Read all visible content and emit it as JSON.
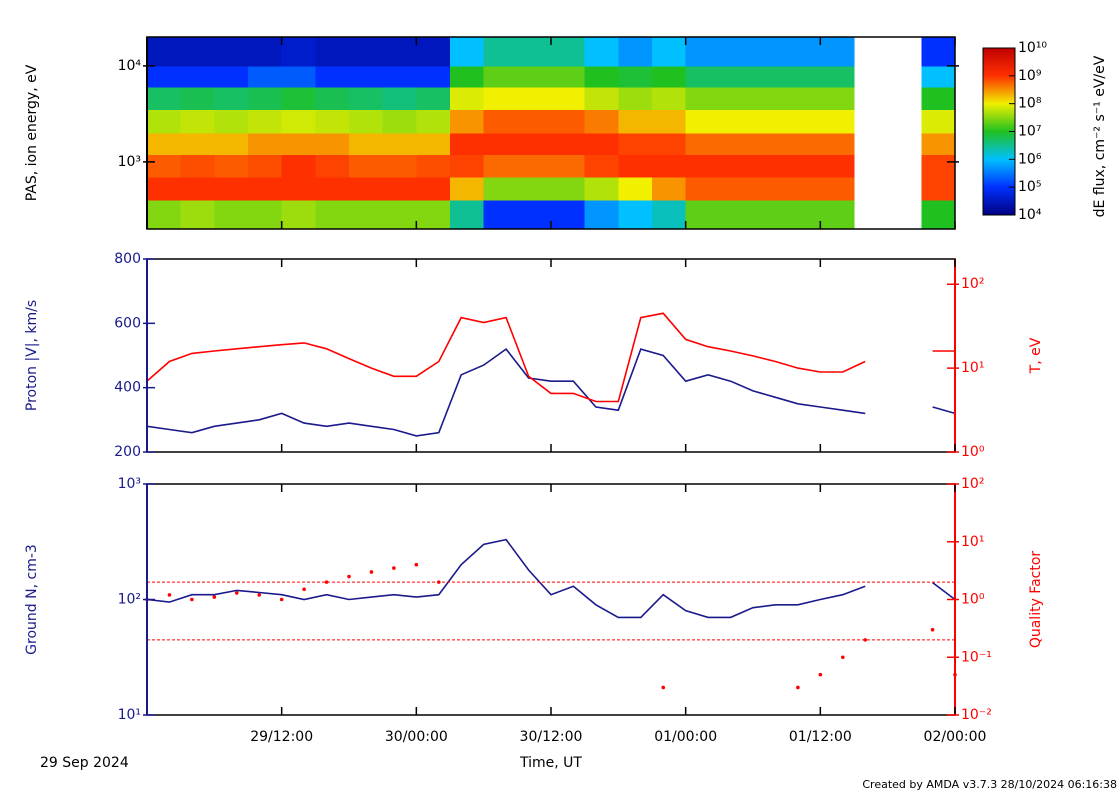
{
  "chart_data": [
    {
      "type": "heatmap",
      "ylabel": "PAS, ion energy, eV",
      "x_bins": [
        0,
        3,
        6,
        9,
        12,
        15,
        18,
        21,
        24,
        27,
        30,
        33,
        36,
        39,
        42,
        45,
        48,
        51,
        54,
        57,
        60,
        63,
        66,
        69,
        72
      ],
      "y_bins": [
        200,
        400,
        700,
        1200,
        2000,
        3500,
        6000,
        10000,
        20000
      ],
      "z": [
        [
          30000000.0,
          1000000000.0,
          600000000.0,
          200000000.0,
          50000000.0,
          5000000.0,
          100000.0,
          30000.0
        ],
        [
          40000000.0,
          1000000000.0,
          700000000.0,
          200000000.0,
          60000000.0,
          6000000.0,
          100000.0,
          30000.0
        ],
        [
          30000000.0,
          1000000000.0,
          600000000.0,
          200000000.0,
          50000000.0,
          5000000.0,
          100000.0,
          30000.0
        ],
        [
          30000000.0,
          1000000000.0,
          700000000.0,
          300000000.0,
          60000000.0,
          6000000.0,
          200000.0,
          30000.0
        ],
        [
          40000000.0,
          1000000000.0,
          1000000000.0,
          300000000.0,
          70000000.0,
          8000000.0,
          200000.0,
          40000.0
        ],
        [
          30000000.0,
          1000000000.0,
          800000000.0,
          300000000.0,
          60000000.0,
          6000000.0,
          100000.0,
          30000.0
        ],
        [
          30000000.0,
          1000000000.0,
          600000000.0,
          200000000.0,
          50000000.0,
          5000000.0,
          100000.0,
          30000.0
        ],
        [
          30000000.0,
          1000000000.0,
          600000000.0,
          200000000.0,
          40000000.0,
          4000000.0,
          100000.0,
          30000.0
        ],
        [
          30000000.0,
          1000000000.0,
          700000000.0,
          200000000.0,
          50000000.0,
          5000000.0,
          100000.0,
          30000.0
        ],
        [
          3000000.0,
          200000000.0,
          800000000.0,
          1000000000.0,
          300000000.0,
          80000000.0,
          10000000.0,
          1000000.0
        ],
        [
          100000.0,
          30000000.0,
          500000000.0,
          1000000000.0,
          600000000.0,
          100000000.0,
          20000000.0,
          3000000.0
        ],
        [
          100000.0,
          30000000.0,
          500000000.0,
          1000000000.0,
          600000000.0,
          100000000.0,
          20000000.0,
          3000000.0
        ],
        [
          100000.0,
          30000000.0,
          500000000.0,
          1000000000.0,
          600000000.0,
          100000000.0,
          20000000.0,
          3000000.0
        ],
        [
          500000.0,
          50000000.0,
          800000000.0,
          1000000000.0,
          400000000.0,
          60000000.0,
          10000000.0,
          1000000.0
        ],
        [
          1000000.0,
          100000000.0,
          1000000000.0,
          800000000.0,
          200000000.0,
          40000000.0,
          8000000.0,
          500000.0
        ],
        [
          2000000.0,
          300000000.0,
          1000000000.0,
          800000000.0,
          200000000.0,
          50000000.0,
          10000000.0,
          1000000.0
        ],
        [
          20000000.0,
          600000000.0,
          1000000000.0,
          500000000.0,
          100000000.0,
          30000000.0,
          5000000.0,
          500000.0
        ],
        [
          20000000.0,
          600000000.0,
          1000000000.0,
          500000000.0,
          100000000.0,
          30000000.0,
          5000000.0,
          500000.0
        ],
        [
          20000000.0,
          600000000.0,
          1000000000.0,
          500000000.0,
          100000000.0,
          30000000.0,
          5000000.0,
          500000.0
        ],
        [
          20000000.0,
          600000000.0,
          1000000000.0,
          500000000.0,
          100000000.0,
          30000000.0,
          5000000.0,
          500000.0
        ],
        [
          20000000.0,
          600000000.0,
          1000000000.0,
          500000000.0,
          100000000.0,
          30000000.0,
          5000000.0,
          500000.0
        ],
        null,
        null,
        [
          10000000.0,
          800000000.0,
          800000000.0,
          300000000.0,
          80000000.0,
          10000000.0,
          1000000.0,
          100000.0
        ]
      ],
      "xlim": [
        0,
        72
      ],
      "xticks": [
        {
          "value": 12,
          "label": "29/12:00"
        },
        {
          "value": 24,
          "label": "30/00:00"
        },
        {
          "value": 36,
          "label": "30/12:00"
        },
        {
          "value": 48,
          "label": "01/00:00"
        },
        {
          "value": 60,
          "label": "01/12:00"
        },
        {
          "value": 72,
          "label": "02/00:00"
        }
      ],
      "xtick_labels": false,
      "ylim": [
        200,
        20000
      ],
      "ylog": true,
      "yticks": [
        {
          "value": 1000,
          "label": "10³"
        },
        {
          "value": 10000,
          "label": "10⁴"
        }
      ],
      "zlim": [
        10000.0,
        10000000000.0
      ],
      "zlog": true,
      "zticks": [
        {
          "value": 10000.0,
          "label": "10⁴"
        },
        {
          "value": 100000.0,
          "label": "10⁵"
        },
        {
          "value": 1000000.0,
          "label": "10⁶"
        },
        {
          "value": 10000000.0,
          "label": "10⁷"
        },
        {
          "value": 100000000.0,
          "label": "10⁸"
        },
        {
          "value": 1000000000.0,
          "label": "10⁹"
        },
        {
          "value": 10000000000.0,
          "label": "10¹⁰"
        }
      ],
      "zlabel": "dE flux, cm⁻² s⁻¹ eV/eV",
      "colorscale": [
        "#000080",
        "#0030ff",
        "#00c0ff",
        "#20c020",
        "#f0f000",
        "#ff3000",
        "#c00000"
      ]
    },
    {
      "type": "line",
      "ylabel": "Proton |V|, km/s",
      "y2label": "T, eV",
      "x": [
        0,
        2,
        4,
        6,
        8,
        10,
        12,
        14,
        16,
        18,
        20,
        22,
        24,
        26,
        28,
        30,
        32,
        34,
        36,
        38,
        40,
        42,
        44,
        46,
        48,
        50,
        52,
        54,
        56,
        58,
        60,
        62,
        64,
        66,
        68,
        70,
        72
      ],
      "xlim": [
        0,
        72
      ],
      "xticks": [
        {
          "value": 12,
          "label": "29/12:00"
        },
        {
          "value": 24,
          "label": "30/00:00"
        },
        {
          "value": 36,
          "label": "30/12:00"
        },
        {
          "value": 48,
          "label": "01/00:00"
        },
        {
          "value": 60,
          "label": "01/12:00"
        },
        {
          "value": 72,
          "label": "02/00:00"
        }
      ],
      "xtick_labels": false,
      "ylim": [
        200,
        800
      ],
      "yticks": [
        200,
        400,
        600,
        800
      ],
      "y2lim": [
        1,
        200
      ],
      "y2log": true,
      "y2ticks": [
        {
          "value": 1,
          "label": "10⁰"
        },
        {
          "value": 10,
          "label": "10¹"
        },
        {
          "value": 100,
          "label": "10²"
        }
      ],
      "series": [
        {
          "color": "#1a1a8c",
          "values": [
            280,
            270,
            260,
            280,
            290,
            300,
            320,
            290,
            280,
            290,
            280,
            270,
            250,
            260,
            440,
            470,
            520,
            430,
            420,
            420,
            340,
            330,
            520,
            500,
            420,
            440,
            420,
            390,
            370,
            350,
            340,
            330,
            320,
            null,
            null,
            340,
            320
          ]
        },
        {
          "color": "#ff0000",
          "axis": "y2",
          "values": [
            7,
            12,
            15,
            16,
            17,
            18,
            19,
            20,
            17,
            13,
            10,
            8,
            8,
            12,
            40,
            35,
            40,
            8,
            5,
            5,
            4,
            4,
            40,
            45,
            22,
            18,
            16,
            14,
            12,
            10,
            9,
            9,
            12,
            null,
            null,
            16,
            16
          ]
        }
      ]
    },
    {
      "type": "line",
      "ylabel": "Ground N, cm-3",
      "y2label": "Quality Factor",
      "xlabel": "Time, UT",
      "x": [
        0,
        2,
        4,
        6,
        8,
        10,
        12,
        14,
        16,
        18,
        20,
        22,
        24,
        26,
        28,
        30,
        32,
        34,
        36,
        38,
        40,
        42,
        44,
        46,
        48,
        50,
        52,
        54,
        56,
        58,
        60,
        62,
        64,
        66,
        68,
        70,
        72
      ],
      "xlim": [
        0,
        72
      ],
      "xticks": [
        {
          "value": 12,
          "label": "29/12:00"
        },
        {
          "value": 24,
          "label": "30/00:00"
        },
        {
          "value": 36,
          "label": "30/12:00"
        },
        {
          "value": 48,
          "label": "01/00:00"
        },
        {
          "value": 60,
          "label": "01/12:00"
        },
        {
          "value": 72,
          "label": "02/00:00"
        }
      ],
      "ylim": [
        10,
        1000
      ],
      "ylog": true,
      "yticks": [
        {
          "value": 10,
          "label": "10¹"
        },
        {
          "value": 100,
          "label": "10²"
        },
        {
          "value": 1000,
          "label": "10³"
        }
      ],
      "y2lim": [
        0.01,
        100
      ],
      "y2log": true,
      "y2ticks": [
        {
          "value": 0.01,
          "label": "10⁻²"
        },
        {
          "value": 0.1,
          "label": "10⁻¹"
        },
        {
          "value": 1,
          "label": "10⁰"
        },
        {
          "value": 10,
          "label": "10¹"
        },
        {
          "value": 100,
          "label": "10²"
        }
      ],
      "y2_reference_lines": [
        2,
        0.2
      ],
      "series": [
        {
          "color": "#ff0000",
          "axis": "y2",
          "style": "dots",
          "values": [
            1.0,
            1.2,
            1.0,
            1.1,
            1.3,
            1.2,
            1.0,
            1.5,
            2,
            2.5,
            3,
            3.5,
            4,
            2,
            null,
            null,
            null,
            null,
            null,
            null,
            null,
            null,
            null,
            0.03,
            null,
            null,
            null,
            null,
            null,
            0.03,
            0.05,
            0.1,
            0.2,
            null,
            null,
            0.3,
            0.05
          ]
        },
        {
          "color": "#1a1a8c",
          "values": [
            100,
            95,
            110,
            110,
            120,
            115,
            110,
            100,
            110,
            100,
            105,
            110,
            105,
            110,
            200,
            300,
            330,
            180,
            110,
            130,
            90,
            70,
            70,
            110,
            80,
            70,
            70,
            85,
            90,
            90,
            100,
            110,
            130,
            null,
            null,
            140,
            100
          ]
        }
      ]
    }
  ],
  "date_label": "29 Sep 2024",
  "credit": "Created by AMDA v3.7.3 28/10/2024 06:16:38"
}
